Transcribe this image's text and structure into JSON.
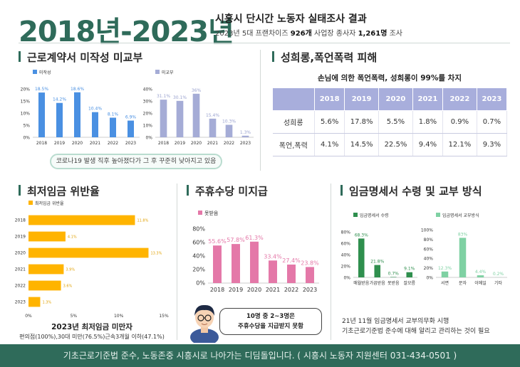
{
  "header": {
    "year_range": "2018년-2023년",
    "title": "시흥시 단시간 노동자 실태조사 결과",
    "subtitle_parts": [
      "2023년 5대 프랜차이즈 ",
      "926개",
      " 사업장 종사자 ",
      "1,261명",
      " 조사"
    ]
  },
  "sections": {
    "contract": "근로계약서 미작성 미교부",
    "harassment": "성희롱,폭언폭력 피해",
    "minwage": "최저임금 위반율",
    "holiday": "주휴수당 미지급",
    "payslip": "임금명세서 수령 및 교부 방식"
  },
  "contract_caption": "코로나19 발생 직후 높아졌다가 그 후 꾸준히 낮아지고 있음",
  "harassment_table": {
    "caption": "손님에 의한 폭언폭력, 성희롱이 99%를 차지",
    "header": [
      "",
      "2018",
      "2019",
      "2020",
      "2021",
      "2022",
      "2023"
    ],
    "rows": [
      [
        "성희롱",
        "5.6%",
        "17.8%",
        "5.5%",
        "1.8%",
        "0.9%",
        "0.7%"
      ],
      [
        "폭언,폭력",
        "4.1%",
        "14.5%",
        "22.5%",
        "9.4%",
        "12.1%",
        "9.3%"
      ]
    ]
  },
  "minwage_note": {
    "title": "2023년 최저임금 미만자",
    "detail": "편의점(100%),30대 미만(76.5%)근속3개월 이하(47.1%)"
  },
  "bubble": {
    "line1": "10명 중  2~3명은",
    "line2": "주휴수당을 지급받지 못함"
  },
  "payslip_note": {
    "line1": "21년 11월 임금명세서 교부의무화 시행",
    "line2": "기초근로기준법 준수에 대해 알리고 관리하는 것이 필요"
  },
  "footer": "기초근로기준법 준수, 노동존중 시흥시로 나아가는 디딤돌입니다. ( 시흥시 노동자 지원센터 031-434-0501 )",
  "colors": {
    "brand": "#2f6b5a",
    "blue": "#4a90e2",
    "lavender": "#a5acd6",
    "orange": "#ffb400",
    "pink": "#e478a8",
    "green_dark": "#2f8f4e",
    "green_light": "#7fd1a3",
    "table_header": "#a8aedc"
  },
  "chart_data": [
    {
      "type": "bar",
      "categories": [
        "2018",
        "2019",
        "2020",
        "2021",
        "2022",
        "2023"
      ],
      "series": [
        {
          "name": "미작성",
          "values": [
            18.5,
            14.2,
            18.6,
            10.4,
            8.1,
            6.9
          ]
        }
      ],
      "labels": [
        "18.5%",
        "14.2%",
        "18.6%",
        "10.4%",
        "8.1%",
        "6.9%"
      ],
      "yticks": [
        "0%",
        "5%",
        "10%",
        "15%",
        "20%"
      ],
      "ylim": [
        0,
        20
      ]
    },
    {
      "type": "bar",
      "categories": [
        "2018",
        "2019",
        "2020",
        "2021",
        "2022",
        "2023"
      ],
      "series": [
        {
          "name": "미교부",
          "values": [
            31.1,
            30.1,
            36,
            15.4,
            10.3,
            1.3
          ]
        }
      ],
      "labels": [
        "31.1%",
        "30.1%",
        "36%",
        "15.4%",
        "10.3%",
        "1.3%"
      ],
      "yticks": [
        "0%",
        "10%",
        "20%",
        "30%",
        "40%"
      ],
      "ylim": [
        0,
        40
      ]
    },
    {
      "type": "bar",
      "orientation": "horizontal",
      "categories": [
        "2018",
        "2019",
        "2020",
        "2021",
        "2022",
        "2023"
      ],
      "series": [
        {
          "name": "최저임금 위반율",
          "values": [
            11.8,
            4.1,
            13.3,
            3.9,
            3.6,
            1.3
          ]
        }
      ],
      "labels": [
        "11.8%",
        "4.1%",
        "13.3%",
        "3.9%",
        "3.6%",
        "1.3%"
      ],
      "xticks": [
        "0%",
        "5%",
        "10%",
        "15%"
      ],
      "xlim": [
        0,
        15
      ]
    },
    {
      "type": "bar",
      "categories": [
        "2018",
        "2019",
        "2020",
        "2021",
        "2022",
        "2023"
      ],
      "series": [
        {
          "name": "못받음",
          "values": [
            55.6,
            57.8,
            61.3,
            33.4,
            27.4,
            23.8
          ]
        }
      ],
      "labels": [
        "55.6%",
        "57.8%",
        "61.3%",
        "33.4%",
        "27.4%",
        "23.8%"
      ],
      "yticks": [
        "0%",
        "20%",
        "40%",
        "60%",
        "80%"
      ],
      "ylim": [
        0,
        80
      ]
    },
    {
      "type": "bar",
      "categories": [
        "매월받음",
        "가끔받음",
        "못받음",
        "잘모름"
      ],
      "series": [
        {
          "name": "임금명세서 수령",
          "values": [
            68.3,
            21.8,
            0.7,
            9.1
          ]
        }
      ],
      "labels": [
        "68.3%",
        "21.8%",
        "0.7%",
        "9.1%"
      ],
      "yticks": [
        "0%",
        "20%",
        "40%",
        "60%",
        "80%"
      ],
      "ylim": [
        0,
        80
      ]
    },
    {
      "type": "bar",
      "categories": [
        "서면",
        "문자",
        "이메일",
        "기타"
      ],
      "series": [
        {
          "name": "임금명세서 교부방식",
          "values": [
            12.3,
            83,
            4.4,
            0.2
          ]
        }
      ],
      "labels": [
        "12.3%",
        "83%",
        "4.4%",
        "0.2%"
      ],
      "yticks": [
        "0%",
        "20%",
        "40%",
        "60%",
        "80%",
        "100%"
      ],
      "ylim": [
        0,
        100
      ]
    }
  ]
}
